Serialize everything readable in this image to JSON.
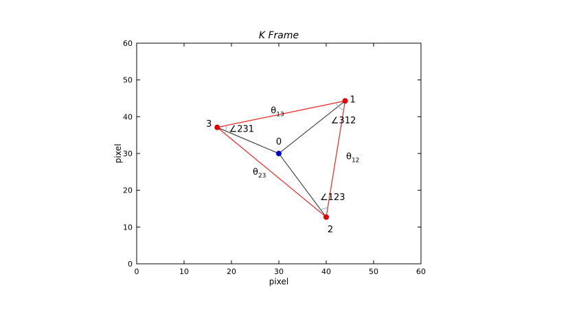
{
  "chart_data": {
    "type": "scatter",
    "title": "K Frame",
    "xlabel": "pixel",
    "ylabel": "pixel",
    "xlim": [
      0,
      60
    ],
    "ylim": [
      0,
      60
    ],
    "xticks": [
      0,
      10,
      20,
      30,
      40,
      50,
      60
    ],
    "yticks": [
      0,
      10,
      20,
      30,
      40,
      50,
      60
    ],
    "grid": false,
    "colors": {
      "outer_points": "#dd0000",
      "center_point": "#0000cc",
      "triangle_edges": "#ee2222",
      "spokes": "#222222",
      "angle_arcs": "#7fb3c8"
    },
    "points": [
      {
        "label": "0",
        "x": 30,
        "y": 30,
        "role": "center"
      },
      {
        "label": "1",
        "x": 44,
        "y": 44.3,
        "role": "vertex"
      },
      {
        "label": "2",
        "x": 40,
        "y": 12.7,
        "role": "vertex"
      },
      {
        "label": "3",
        "x": 17,
        "y": 37.1,
        "role": "vertex"
      }
    ],
    "edges": [
      {
        "from": "1",
        "to": "2",
        "label": "θ",
        "sub": "12"
      },
      {
        "from": "1",
        "to": "3",
        "label": "θ",
        "sub": "13"
      },
      {
        "from": "2",
        "to": "3",
        "label": "θ",
        "sub": "23"
      }
    ],
    "spokes": [
      {
        "from": "0",
        "to": "1"
      },
      {
        "from": "0",
        "to": "2"
      },
      {
        "from": "0",
        "to": "3"
      }
    ],
    "angles": [
      {
        "vertex": "1",
        "label": "∠312",
        "x": 41,
        "y": 38.2
      },
      {
        "vertex": "2",
        "label": "∠123",
        "x": 38.7,
        "y": 17.3
      },
      {
        "vertex": "3",
        "label": "∠231",
        "x": 19.5,
        "y": 35.9
      }
    ],
    "edge_label_positions": [
      {
        "edge": "13",
        "x": 28.3,
        "y": 40.9
      },
      {
        "edge": "12",
        "x": 44.2,
        "y": 28.4
      },
      {
        "edge": "23",
        "x": 24.5,
        "y": 24.2
      }
    ]
  }
}
